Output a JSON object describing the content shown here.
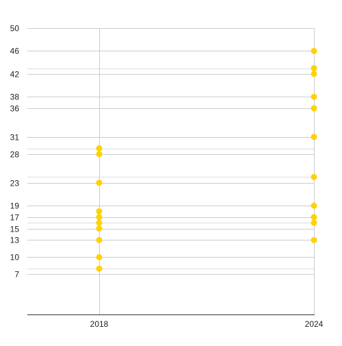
{
  "chart_data": {
    "type": "scatter",
    "title": "",
    "xlabel": "",
    "ylabel": "",
    "x_categories": [
      "2018",
      "2024"
    ],
    "ylim": [
      0,
      50
    ],
    "y_ticks": [
      7,
      10,
      13,
      15,
      17,
      19,
      23,
      28,
      31,
      36,
      38,
      42,
      46,
      50
    ],
    "grid": true,
    "legend": "none",
    "series": [
      {
        "color": "#FFD200",
        "points": [
          {
            "x": "2018",
            "y": 29
          },
          {
            "x": "2018",
            "y": 28
          },
          {
            "x": "2018",
            "y": 23
          },
          {
            "x": "2018",
            "y": 18
          },
          {
            "x": "2018",
            "y": 17
          },
          {
            "x": "2018",
            "y": 16
          },
          {
            "x": "2018",
            "y": 15
          },
          {
            "x": "2018",
            "y": 13
          },
          {
            "x": "2018",
            "y": 10
          },
          {
            "x": "2018",
            "y": 8
          },
          {
            "x": "2024",
            "y": 46
          },
          {
            "x": "2024",
            "y": 43
          },
          {
            "x": "2024",
            "y": 42
          },
          {
            "x": "2024",
            "y": 38
          },
          {
            "x": "2024",
            "y": 36
          },
          {
            "x": "2024",
            "y": 31
          },
          {
            "x": "2024",
            "y": 24
          },
          {
            "x": "2024",
            "y": 19
          },
          {
            "x": "2024",
            "y": 17
          },
          {
            "x": "2024",
            "y": 16
          },
          {
            "x": "2024",
            "y": 13
          }
        ]
      }
    ],
    "colors": {
      "grid": "#cccccc",
      "axis": "#333333",
      "extra_grid": "#dddddd"
    }
  }
}
